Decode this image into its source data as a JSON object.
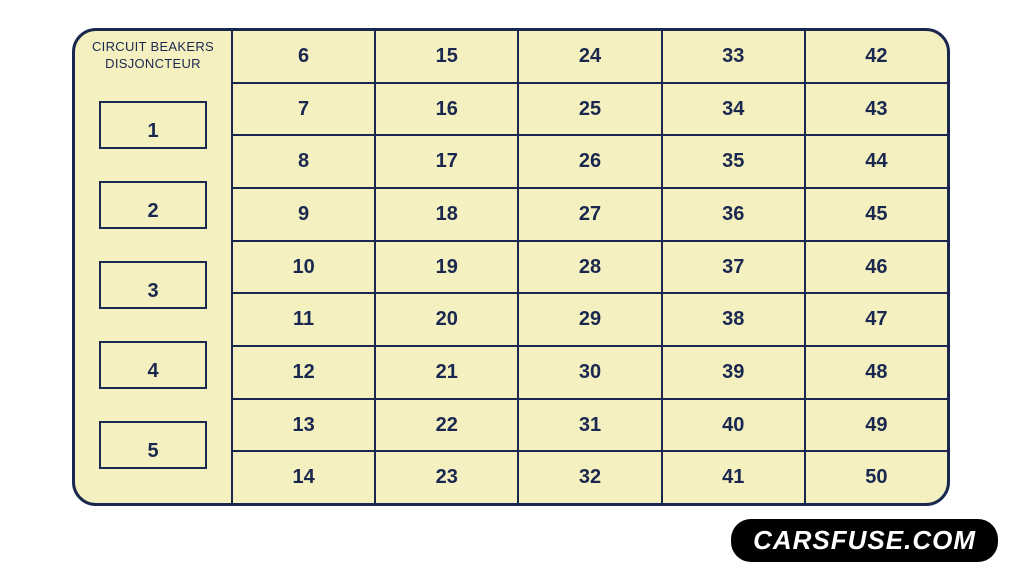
{
  "header": {
    "line1": "CIRCUIT BEAKERS",
    "line2": "DISJONCTEUR"
  },
  "breakers": [
    "1",
    "2",
    "3",
    "4",
    "5"
  ],
  "grid": {
    "columns": [
      [
        "6",
        "7",
        "8",
        "9",
        "10",
        "11",
        "12",
        "13",
        "14"
      ],
      [
        "15",
        "16",
        "17",
        "18",
        "19",
        "20",
        "21",
        "22",
        "23"
      ],
      [
        "24",
        "25",
        "26",
        "27",
        "28",
        "29",
        "30",
        "31",
        "32"
      ],
      [
        "33",
        "34",
        "35",
        "36",
        "37",
        "38",
        "39",
        "40",
        "41"
      ],
      [
        "42",
        "43",
        "44",
        "45",
        "46",
        "47",
        "48",
        "49",
        "50"
      ]
    ]
  },
  "watermark": "CARSFUSE.COM",
  "colors": {
    "background": "#f5f0c0",
    "border": "#1a2850",
    "text": "#1a2850",
    "watermark_bg": "#000000",
    "watermark_text": "#ffffff"
  }
}
